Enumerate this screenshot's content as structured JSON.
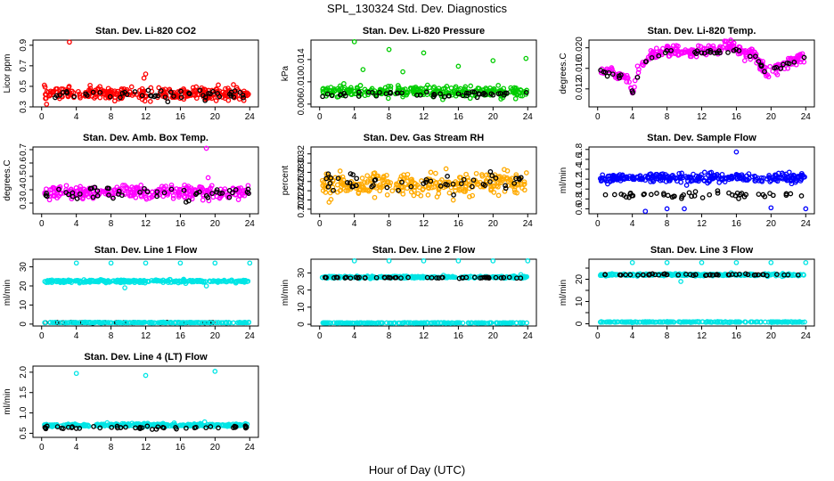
{
  "title": "SPL_130324  Std. Dev. Diagnostics",
  "xlabel": "Hour of Day (UTC)",
  "chart_data": [
    {
      "type": "scatter",
      "title": "Stan. Dev. Li-820 CO2",
      "ylabel": "Licor ppm",
      "xlim": [
        -1,
        25
      ],
      "ylim": [
        0.3,
        0.95
      ],
      "xticks": [
        0,
        4,
        8,
        12,
        16,
        20,
        24
      ],
      "yticks": [
        0.3,
        0.5,
        0.7,
        0.9
      ],
      "ytick_labels": [
        "0.3",
        "0.5",
        "0.7",
        "0.9"
      ],
      "series": [
        {
          "color": "#ff0000",
          "base": 0.43,
          "spread": 0.05,
          "n": 300,
          "outliers": [
            [
              3.2,
              0.93
            ],
            [
              12,
              0.62
            ],
            [
              11.8,
              0.58
            ]
          ]
        },
        {
          "color": "#000000",
          "base": 0.42,
          "spread": 0.04,
          "n": 50,
          "outliers": []
        }
      ]
    },
    {
      "type": "scatter",
      "title": "Stan. Dev. Li-820 Pressure",
      "ylabel": "kPa",
      "xlim": [
        -1,
        25
      ],
      "ylim": [
        0.0055,
        0.0175
      ],
      "xticks": [
        0,
        4,
        8,
        12,
        16,
        20,
        24
      ],
      "yticks": [
        0.006,
        0.01,
        0.014
      ],
      "ytick_labels": [
        "0.006",
        "0.010",
        "0.014"
      ],
      "series": [
        {
          "color": "#00cc00",
          "base": 0.0082,
          "spread": 0.0008,
          "n": 300,
          "outliers": [
            [
              4,
              0.0172
            ],
            [
              8,
              0.0158
            ],
            [
              12,
              0.0152
            ],
            [
              16,
              0.0128
            ],
            [
              20,
              0.0138
            ],
            [
              23.8,
              0.0142
            ],
            [
              5,
              0.0122
            ],
            [
              9.6,
              0.0118
            ]
          ]
        },
        {
          "color": "#000000",
          "base": 0.0078,
          "spread": 0.0004,
          "n": 50,
          "outliers": []
        }
      ]
    },
    {
      "type": "scatter",
      "title": "Stan. Dev. Li-820 Temp.",
      "ylabel": "degrees.C",
      "xlim": [
        -1,
        25
      ],
      "ylim": [
        0.0085,
        0.0215
      ],
      "xticks": [
        0,
        4,
        8,
        12,
        16,
        20,
        24
      ],
      "yticks": [
        0.012,
        0.016,
        0.02
      ],
      "ytick_labels": [
        "0.012",
        "0.016",
        "0.020"
      ],
      "series": [
        {
          "color": "#ff00ff",
          "profile": [
            [
              0,
              0.0158
            ],
            [
              2,
              0.0152
            ],
            [
              3.5,
              0.014
            ],
            [
              4,
              0.011
            ],
            [
              4.8,
              0.016
            ],
            [
              6,
              0.0185
            ],
            [
              8,
              0.0195
            ],
            [
              10,
              0.019
            ],
            [
              12,
              0.0195
            ],
            [
              14,
              0.0195
            ],
            [
              15.5,
              0.0205
            ],
            [
              17,
              0.019
            ],
            [
              18,
              0.019
            ],
            [
              19.5,
              0.0148
            ],
            [
              21,
              0.0165
            ],
            [
              24,
              0.0185
            ]
          ],
          "spread": 0.0009,
          "n": 300,
          "outliers": []
        },
        {
          "color": "#000000",
          "profile": [
            [
              0,
              0.0155
            ],
            [
              3.5,
              0.014
            ],
            [
              4,
              0.011
            ],
            [
              5,
              0.016
            ],
            [
              6,
              0.018
            ],
            [
              8,
              0.019
            ],
            [
              12,
              0.019
            ],
            [
              16,
              0.0195
            ],
            [
              18,
              0.0185
            ],
            [
              19.5,
              0.0145
            ],
            [
              21,
              0.0162
            ],
            [
              24,
              0.0182
            ]
          ],
          "spread": 0.0005,
          "n": 50,
          "outliers": []
        }
      ]
    },
    {
      "type": "scatter",
      "title": "Stan. Dev. Amb. Box Temp.",
      "ylabel": "degrees.C",
      "xlim": [
        -1,
        25
      ],
      "ylim": [
        0.22,
        0.72
      ],
      "xticks": [
        0,
        4,
        8,
        12,
        16,
        20,
        24
      ],
      "yticks": [
        0.3,
        0.4,
        0.5,
        0.6,
        0.7
      ],
      "ytick_labels": [
        "0.3",
        "0.4",
        "0.5",
        "0.6",
        "0.7"
      ],
      "series": [
        {
          "color": "#ff00ff",
          "base": 0.38,
          "spread": 0.04,
          "n": 300,
          "outliers": [
            [
              19,
              0.71
            ],
            [
              19.2,
              0.49
            ]
          ]
        },
        {
          "color": "#000000",
          "base": 0.37,
          "spread": 0.04,
          "n": 50,
          "outliers": []
        }
      ]
    },
    {
      "type": "scatter",
      "title": "Stan. Dev. Gas Stream RH",
      "ylabel": "percent",
      "xlim": [
        -1,
        25
      ],
      "ylim": [
        0.19,
        0.335
      ],
      "xticks": [
        0,
        4,
        8,
        12,
        16,
        20,
        24
      ],
      "yticks": [
        0.2,
        0.22,
        0.24,
        0.26,
        0.28,
        0.3,
        0.32
      ],
      "ytick_labels": [
        "0.20",
        "0.22",
        "0.24",
        "0.26",
        "0.28",
        "0.30",
        "0.32"
      ],
      "series": [
        {
          "color": "#ffaa00",
          "base": 0.255,
          "spread": 0.02,
          "n": 300,
          "outliers": []
        },
        {
          "color": "#000000",
          "base": 0.255,
          "spread": 0.02,
          "n": 50,
          "outliers": []
        }
      ]
    },
    {
      "type": "scatter",
      "title": "Stan. Dev. Sample Flow",
      "ylabel": "ml/min",
      "xlim": [
        -1,
        25
      ],
      "ylim": [
        0.5,
        1.85
      ],
      "xticks": [
        0,
        4,
        8,
        12,
        16,
        20,
        24
      ],
      "yticks": [
        0.6,
        0.8,
        1.0,
        1.2,
        1.4,
        1.6,
        1.8
      ],
      "ytick_labels": [
        "0.6",
        "0.8",
        "1.0",
        "1.2",
        "1.4",
        "1.6",
        "1.8"
      ],
      "series": [
        {
          "color": "#0000ff",
          "base": 1.22,
          "spread": 0.08,
          "n": 300,
          "outliers": [
            [
              16,
              1.75
            ],
            [
              8,
              0.6
            ],
            [
              10,
              0.6
            ],
            [
              5.5,
              0.55
            ],
            [
              24,
              0.6
            ],
            [
              20,
              0.62
            ]
          ]
        },
        {
          "color": "#000000",
          "base": 0.87,
          "spread": 0.05,
          "n": 50,
          "outliers": []
        }
      ]
    },
    {
      "type": "scatter",
      "title": "Stan. Dev. Line 1 Flow",
      "ylabel": "ml/min",
      "xlim": [
        -1,
        25
      ],
      "ylim": [
        -1,
        34
      ],
      "xticks": [
        0,
        4,
        8,
        12,
        16,
        20,
        24
      ],
      "yticks": [
        0,
        10,
        20,
        30
      ],
      "ytick_labels": [
        "0",
        "10",
        "20",
        "30"
      ],
      "series": [
        {
          "color": "#00e5e5",
          "base": 22.5,
          "spread": 0.6,
          "n": 300,
          "outliers": [
            [
              4,
              32
            ],
            [
              8,
              32
            ],
            [
              12,
              32
            ],
            [
              16,
              32
            ],
            [
              20,
              32
            ],
            [
              24,
              32
            ],
            [
              9.6,
              19
            ],
            [
              19,
              20
            ]
          ]
        },
        {
          "color": "#000000",
          "base": 0.8,
          "spread": 0.15,
          "n": 50,
          "outliers": []
        },
        {
          "color": "#00e5e5",
          "base": 0.8,
          "spread": 0.15,
          "n": 200,
          "outliers": []
        }
      ]
    },
    {
      "type": "scatter",
      "title": "Stan. Dev. Line 2 Flow",
      "ylabel": "ml/min",
      "xlim": [
        -1,
        25
      ],
      "ylim": [
        -1,
        38
      ],
      "xticks": [
        0,
        4,
        8,
        12,
        16,
        20,
        24
      ],
      "yticks": [
        0,
        10,
        20,
        30
      ],
      "ytick_labels": [
        "0",
        "10",
        "20",
        "30"
      ],
      "series": [
        {
          "color": "#00e5e5",
          "base": 27.5,
          "spread": 0.5,
          "n": 300,
          "outliers": [
            [
              4,
              37
            ],
            [
              8,
              37
            ],
            [
              12,
              37
            ],
            [
              16,
              37
            ],
            [
              20,
              37
            ],
            [
              24,
              37
            ],
            [
              23.2,
              29
            ]
          ]
        },
        {
          "color": "#000000",
          "base": 27.2,
          "spread": 0.3,
          "n": 50,
          "outliers": []
        },
        {
          "color": "#00e5e5",
          "base": 0.8,
          "spread": 0.15,
          "n": 200,
          "outliers": []
        }
      ]
    },
    {
      "type": "scatter",
      "title": "Stan. Dev. Line 3 Flow",
      "ylabel": "ml/min",
      "xlim": [
        -1,
        25
      ],
      "ylim": [
        -1,
        29
      ],
      "xticks": [
        0,
        4,
        8,
        12,
        16,
        20,
        24
      ],
      "yticks": [
        0,
        5,
        10,
        15,
        20,
        25
      ],
      "ytick_labels": [
        "0",
        "",
        "10",
        "",
        "20",
        ""
      ],
      "series": [
        {
          "color": "#00e5e5",
          "base": 22,
          "spread": 0.4,
          "n": 300,
          "outliers": [
            [
              4,
              27.5
            ],
            [
              8,
              27.5
            ],
            [
              12,
              27.5
            ],
            [
              16,
              27.5
            ],
            [
              20,
              27.5
            ],
            [
              24,
              27.5
            ],
            [
              9.6,
              19
            ]
          ]
        },
        {
          "color": "#000000",
          "base": 22,
          "spread": 0.3,
          "n": 50,
          "outliers": []
        },
        {
          "color": "#00e5e5",
          "base": 0.8,
          "spread": 0.15,
          "n": 200,
          "outliers": []
        }
      ]
    },
    {
      "type": "scatter",
      "title": "Stan. Dev. Line 4 (LT) Flow",
      "ylabel": "ml/min",
      "xlim": [
        -1,
        25
      ],
      "ylim": [
        0.4,
        2.15
      ],
      "xticks": [
        0,
        4,
        8,
        12,
        16,
        20,
        24
      ],
      "yticks": [
        0.5,
        1.0,
        1.5,
        2.0
      ],
      "ytick_labels": [
        "0.5",
        "1.0",
        "1.5",
        "2.0"
      ],
      "series": [
        {
          "color": "#00e5e5",
          "base": 0.7,
          "spread": 0.03,
          "n": 300,
          "outliers": [
            [
              4,
              1.97
            ],
            [
              12,
              1.92
            ],
            [
              20,
              2.02
            ],
            [
              18.8,
              0.78
            ]
          ]
        },
        {
          "color": "#000000",
          "base": 0.64,
          "spread": 0.03,
          "n": 50,
          "outliers": []
        }
      ]
    }
  ]
}
